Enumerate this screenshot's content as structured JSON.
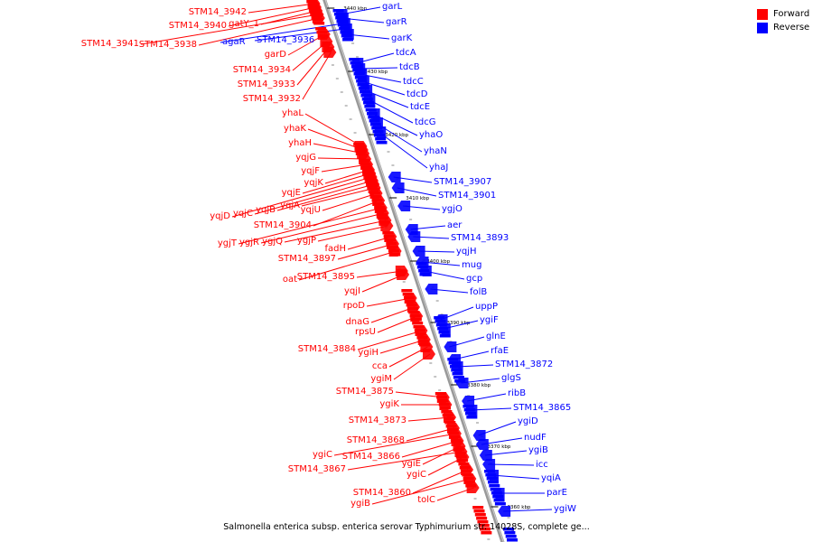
{
  "legend": {
    "forward_label": "Forward",
    "reverse_label": "Reverse",
    "forward_color": "#ff0000",
    "reverse_color": "#0000ff"
  },
  "caption": "Salmonella enterica subsp. enterica serovar Typhimurium str. 14028S, complete ge...",
  "backbone_color": "#999999",
  "ticks": [
    "3440 kbp",
    "3430 kbp",
    "3420 kbp",
    "3410 kbp",
    "3400 kbp",
    "3390 kbp",
    "3380 kbp",
    "3370 kbp",
    "3360 kbp"
  ],
  "forward_genes": [
    "STM14_3942",
    "STM14_3940",
    "gatY_1",
    "STM14_3941",
    "STM14_3938",
    "garD",
    "STM14_3934",
    "STM14_3933",
    "STM14_3932",
    "yhaL",
    "yhaK",
    "yhaH",
    "yqjG",
    "yqjF",
    "yqjK",
    "yqjE",
    "yqjD",
    "yqjC",
    "yqjB",
    "yqjA",
    "yqjU",
    "STM14_3904",
    "ygjT",
    "ygjR",
    "ygjQ",
    "ygjP",
    "fadH",
    "STM14_3897",
    "oat",
    "STM14_3895",
    "yqjI",
    "rpoD",
    "dnaG",
    "rpsU",
    "STM14_3884",
    "ygiH",
    "cca",
    "ygiM",
    "STM14_3875",
    "ygiK",
    "STM14_3873",
    "STM14_3868",
    "ygiC",
    "STM14_3866",
    "ygiE",
    "STM14_3867",
    "ygiC",
    "STM14_3860",
    "ygiB",
    "tolC"
  ],
  "reverse_genes": [
    "garL",
    "garR",
    "agaR",
    "STM14_3936",
    "garK",
    "tdcA",
    "tdcB",
    "tdcC",
    "tdcD",
    "tdcE",
    "tdcG",
    "yhaO",
    "yhaN",
    "yhaJ",
    "STM14_3907",
    "STM14_3901",
    "ygjO",
    "aer",
    "STM14_3893",
    "yqjH",
    "mug",
    "gcp",
    "folB",
    "uppP",
    "ygiF",
    "glnE",
    "rfaE",
    "STM14_3872",
    "glgS",
    "ribB",
    "STM14_3865",
    "ygiD",
    "nudF",
    "ygiB",
    "icc",
    "yqiA",
    "parE",
    "ygiW"
  ]
}
